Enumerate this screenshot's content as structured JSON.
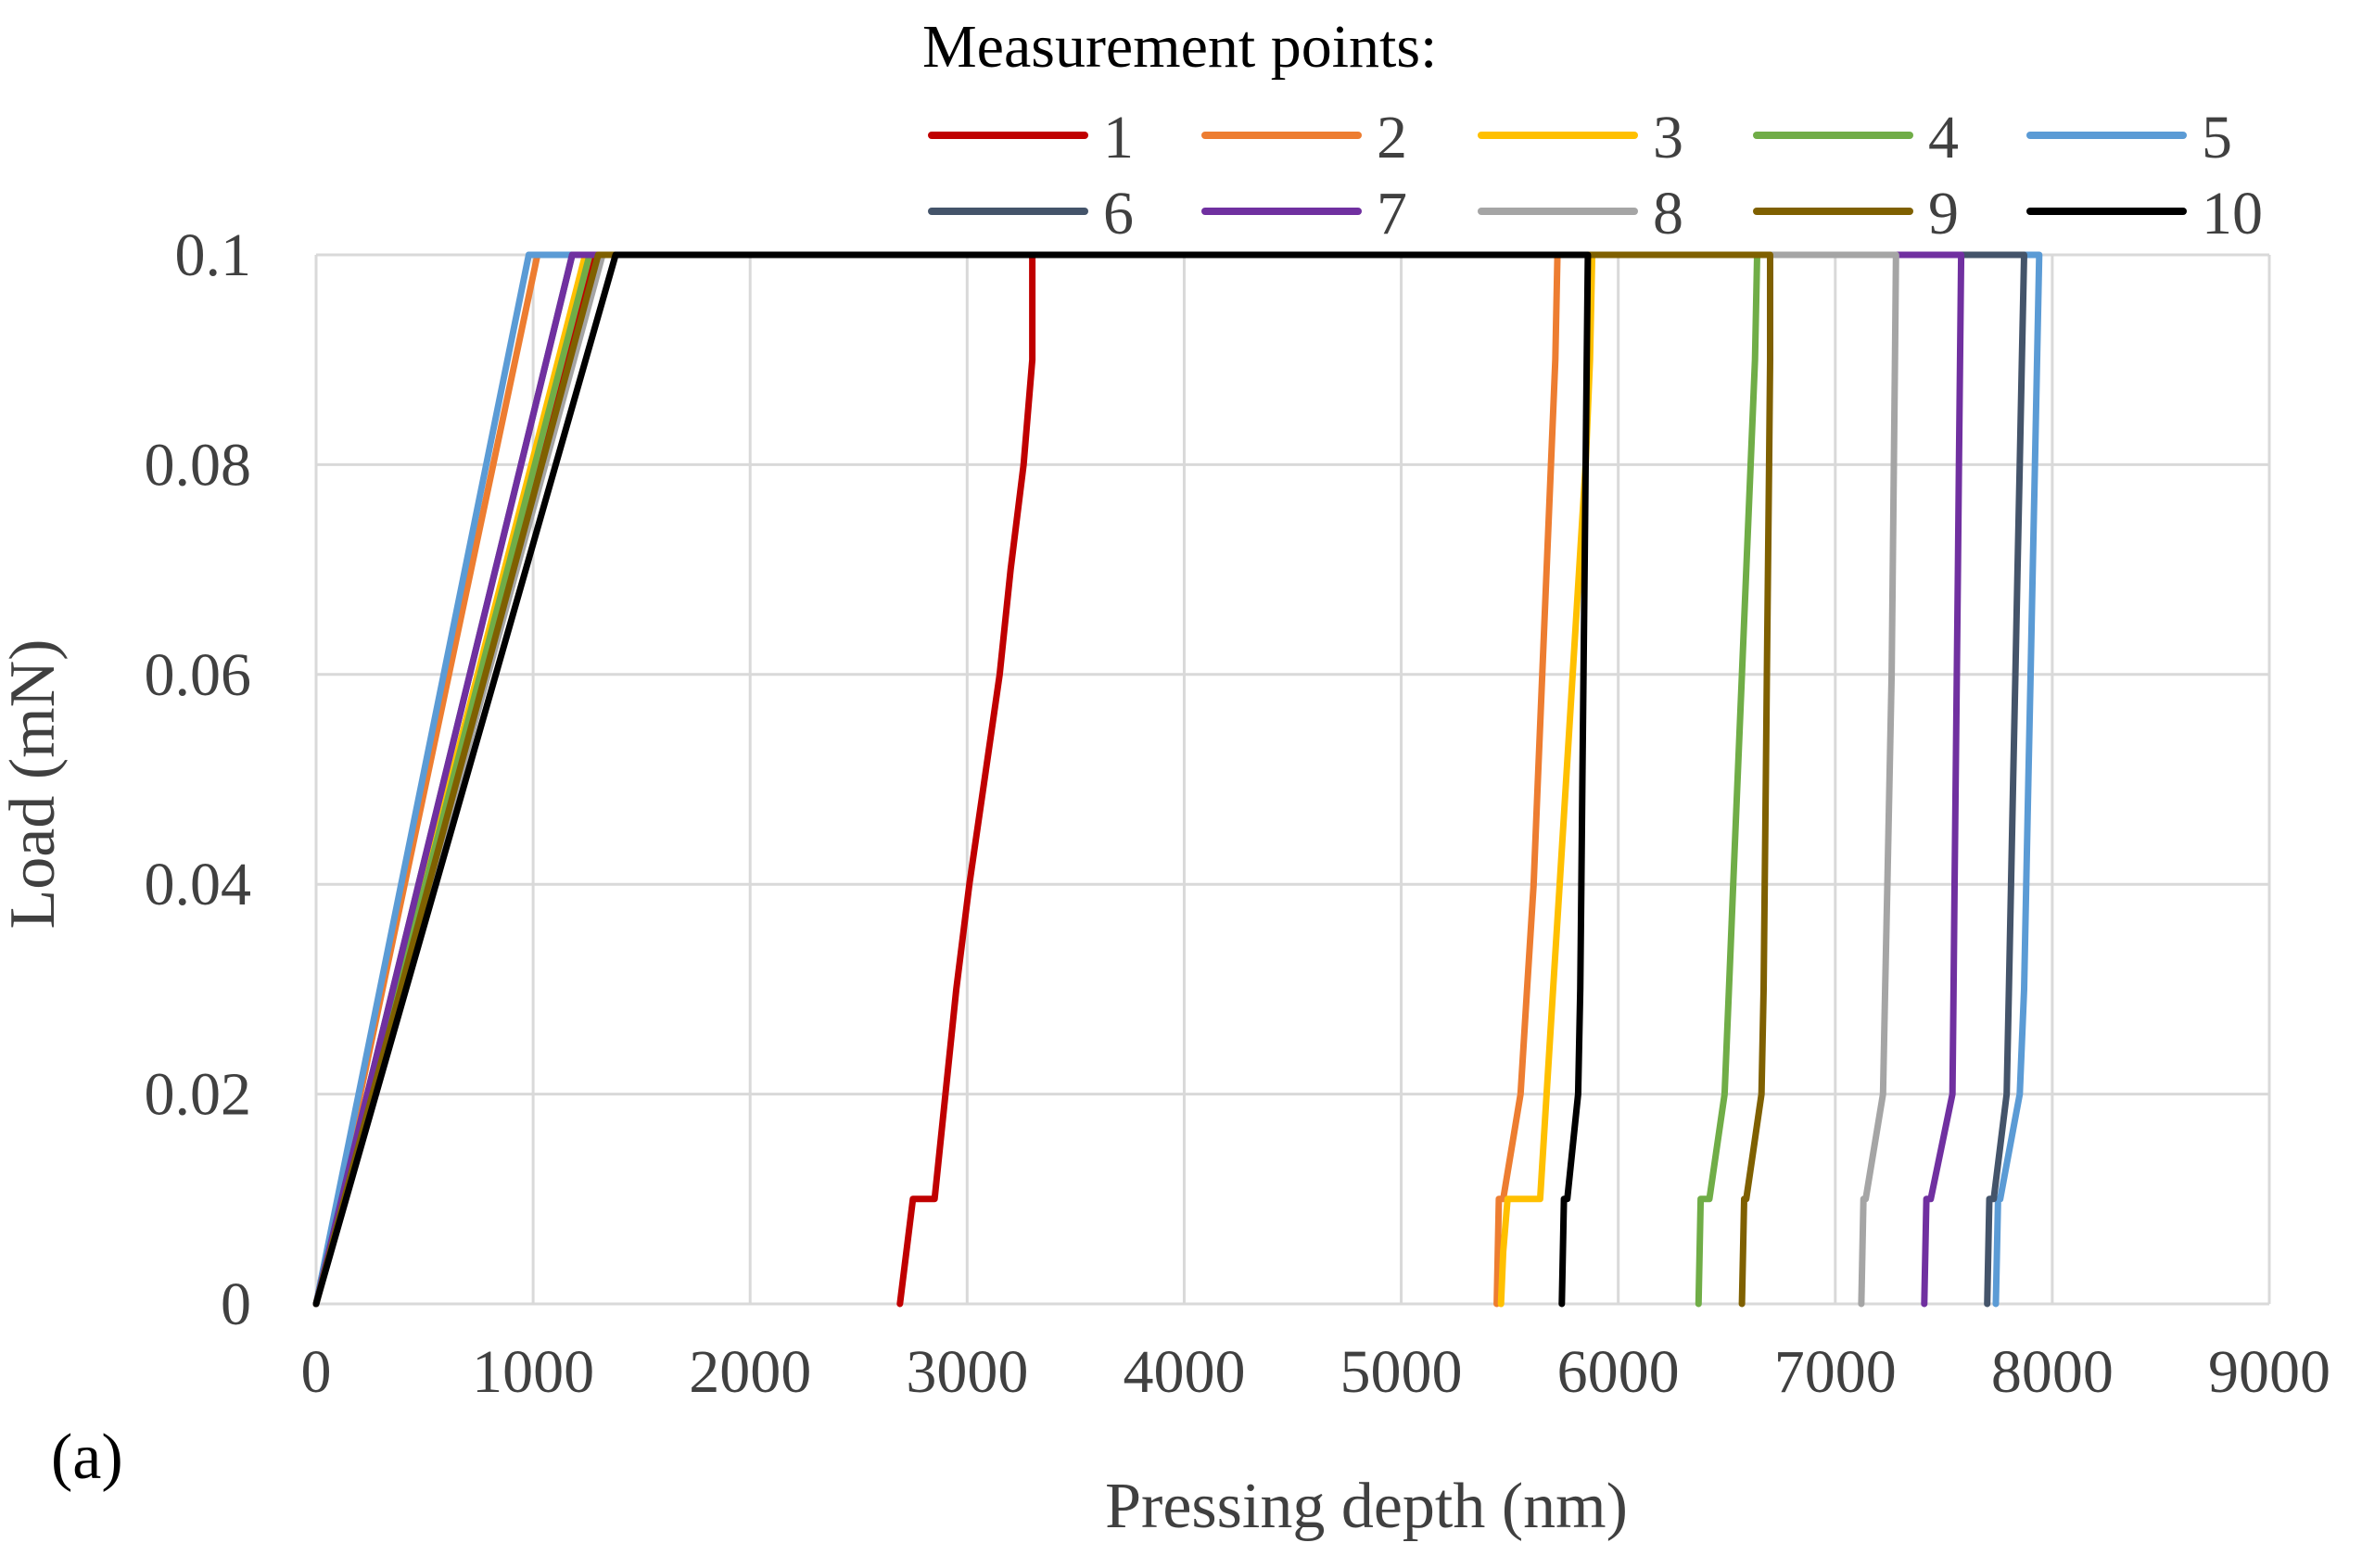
{
  "chart_data": {
    "type": "line",
    "panel_label": "(a)",
    "xlabel": "Pressing depth (nm)",
    "ylabel": "Load (mN)",
    "xlim": [
      0,
      9000
    ],
    "ylim": [
      0,
      0.1
    ],
    "x_ticks": [
      "0",
      "1000",
      "2000",
      "3000",
      "4000",
      "5000",
      "6000",
      "7000",
      "8000",
      "9000"
    ],
    "y_ticks": [
      "0",
      "0.02",
      "0.04",
      "0.06",
      "0.08",
      "0.1"
    ],
    "grid": true,
    "legend_title": "Measurement points:",
    "legend_position": "top",
    "series": [
      {
        "name": "1",
        "color": "#C00000",
        "x": [
          0,
          1290,
          3300,
          3300,
          3260,
          3200,
          3150,
          3080,
          3010,
          2950,
          2900,
          2850,
          2750,
          2720,
          2690
        ],
        "y": [
          0,
          0.1,
          0.1,
          0.09,
          0.08,
          0.07,
          0.06,
          0.05,
          0.04,
          0.03,
          0.02,
          0.01,
          0.01,
          0.005,
          0
        ]
      },
      {
        "name": "2",
        "color": "#ED7D31",
        "x": [
          0,
          1020,
          5720,
          5710,
          5690,
          5670,
          5650,
          5630,
          5610,
          5580,
          5550,
          5470,
          5450,
          5440
        ],
        "y": [
          0,
          0.1,
          0.1,
          0.09,
          0.08,
          0.07,
          0.06,
          0.05,
          0.04,
          0.03,
          0.02,
          0.01,
          0.01,
          0
        ]
      },
      {
        "name": "3",
        "color": "#FFC000",
        "x": [
          0,
          1240,
          5880,
          5870,
          5850,
          5820,
          5790,
          5760,
          5730,
          5700,
          5670,
          5640,
          5490,
          5470,
          5460
        ],
        "y": [
          0,
          0.1,
          0.1,
          0.09,
          0.08,
          0.07,
          0.06,
          0.05,
          0.04,
          0.03,
          0.02,
          0.01,
          0.01,
          0.005,
          0
        ]
      },
      {
        "name": "4",
        "color": "#70AD47",
        "x": [
          0,
          1260,
          6640,
          6630,
          6610,
          6590,
          6570,
          6550,
          6530,
          6510,
          6490,
          6420,
          6380,
          6370
        ],
        "y": [
          0,
          0.1,
          0.1,
          0.09,
          0.08,
          0.07,
          0.06,
          0.05,
          0.04,
          0.03,
          0.02,
          0.01,
          0.01,
          0
        ]
      },
      {
        "name": "5",
        "color": "#5B9BD5",
        "x": [
          0,
          980,
          7940,
          7930,
          7920,
          7910,
          7900,
          7890,
          7880,
          7870,
          7850,
          7760,
          7750,
          7740
        ],
        "y": [
          0,
          0.1,
          0.1,
          0.09,
          0.08,
          0.07,
          0.06,
          0.05,
          0.04,
          0.03,
          0.02,
          0.01,
          0.01,
          0
        ]
      },
      {
        "name": "6",
        "color": "#44546A",
        "x": [
          0,
          1180,
          7870,
          7860,
          7850,
          7840,
          7830,
          7820,
          7810,
          7800,
          7790,
          7730,
          7710,
          7700
        ],
        "y": [
          0,
          0.1,
          0.1,
          0.09,
          0.08,
          0.07,
          0.06,
          0.05,
          0.04,
          0.03,
          0.02,
          0.01,
          0.01,
          0
        ]
      },
      {
        "name": "7",
        "color": "#7030A0",
        "x": [
          0,
          1180,
          7580,
          7575,
          7570,
          7565,
          7560,
          7555,
          7550,
          7545,
          7540,
          7440,
          7420,
          7410
        ],
        "y": [
          0,
          0.1,
          0.1,
          0.09,
          0.08,
          0.07,
          0.06,
          0.05,
          0.04,
          0.03,
          0.02,
          0.01,
          0.01,
          0
        ]
      },
      {
        "name": "8",
        "color": "#A5A5A5",
        "x": [
          0,
          1320,
          7280,
          7275,
          7270,
          7265,
          7260,
          7250,
          7240,
          7230,
          7220,
          7140,
          7130,
          7120
        ],
        "y": [
          0,
          0.1,
          0.1,
          0.09,
          0.08,
          0.07,
          0.06,
          0.05,
          0.04,
          0.03,
          0.02,
          0.01,
          0.01,
          0
        ]
      },
      {
        "name": "9",
        "color": "#7F6000",
        "x": [
          0,
          1300,
          6700,
          6700,
          6695,
          6690,
          6685,
          6680,
          6675,
          6670,
          6660,
          6590,
          6580,
          6570
        ],
        "y": [
          0,
          0.1,
          0.1,
          0.09,
          0.08,
          0.07,
          0.06,
          0.05,
          0.04,
          0.03,
          0.02,
          0.01,
          0.01,
          0
        ]
      },
      {
        "name": "10",
        "color": "#000000",
        "x": [
          0,
          1380,
          5860,
          5855,
          5850,
          5845,
          5840,
          5835,
          5830,
          5825,
          5815,
          5765,
          5750,
          5740
        ],
        "y": [
          0,
          0.1,
          0.1,
          0.09,
          0.08,
          0.07,
          0.06,
          0.05,
          0.04,
          0.03,
          0.02,
          0.01,
          0.01,
          0
        ]
      }
    ]
  }
}
